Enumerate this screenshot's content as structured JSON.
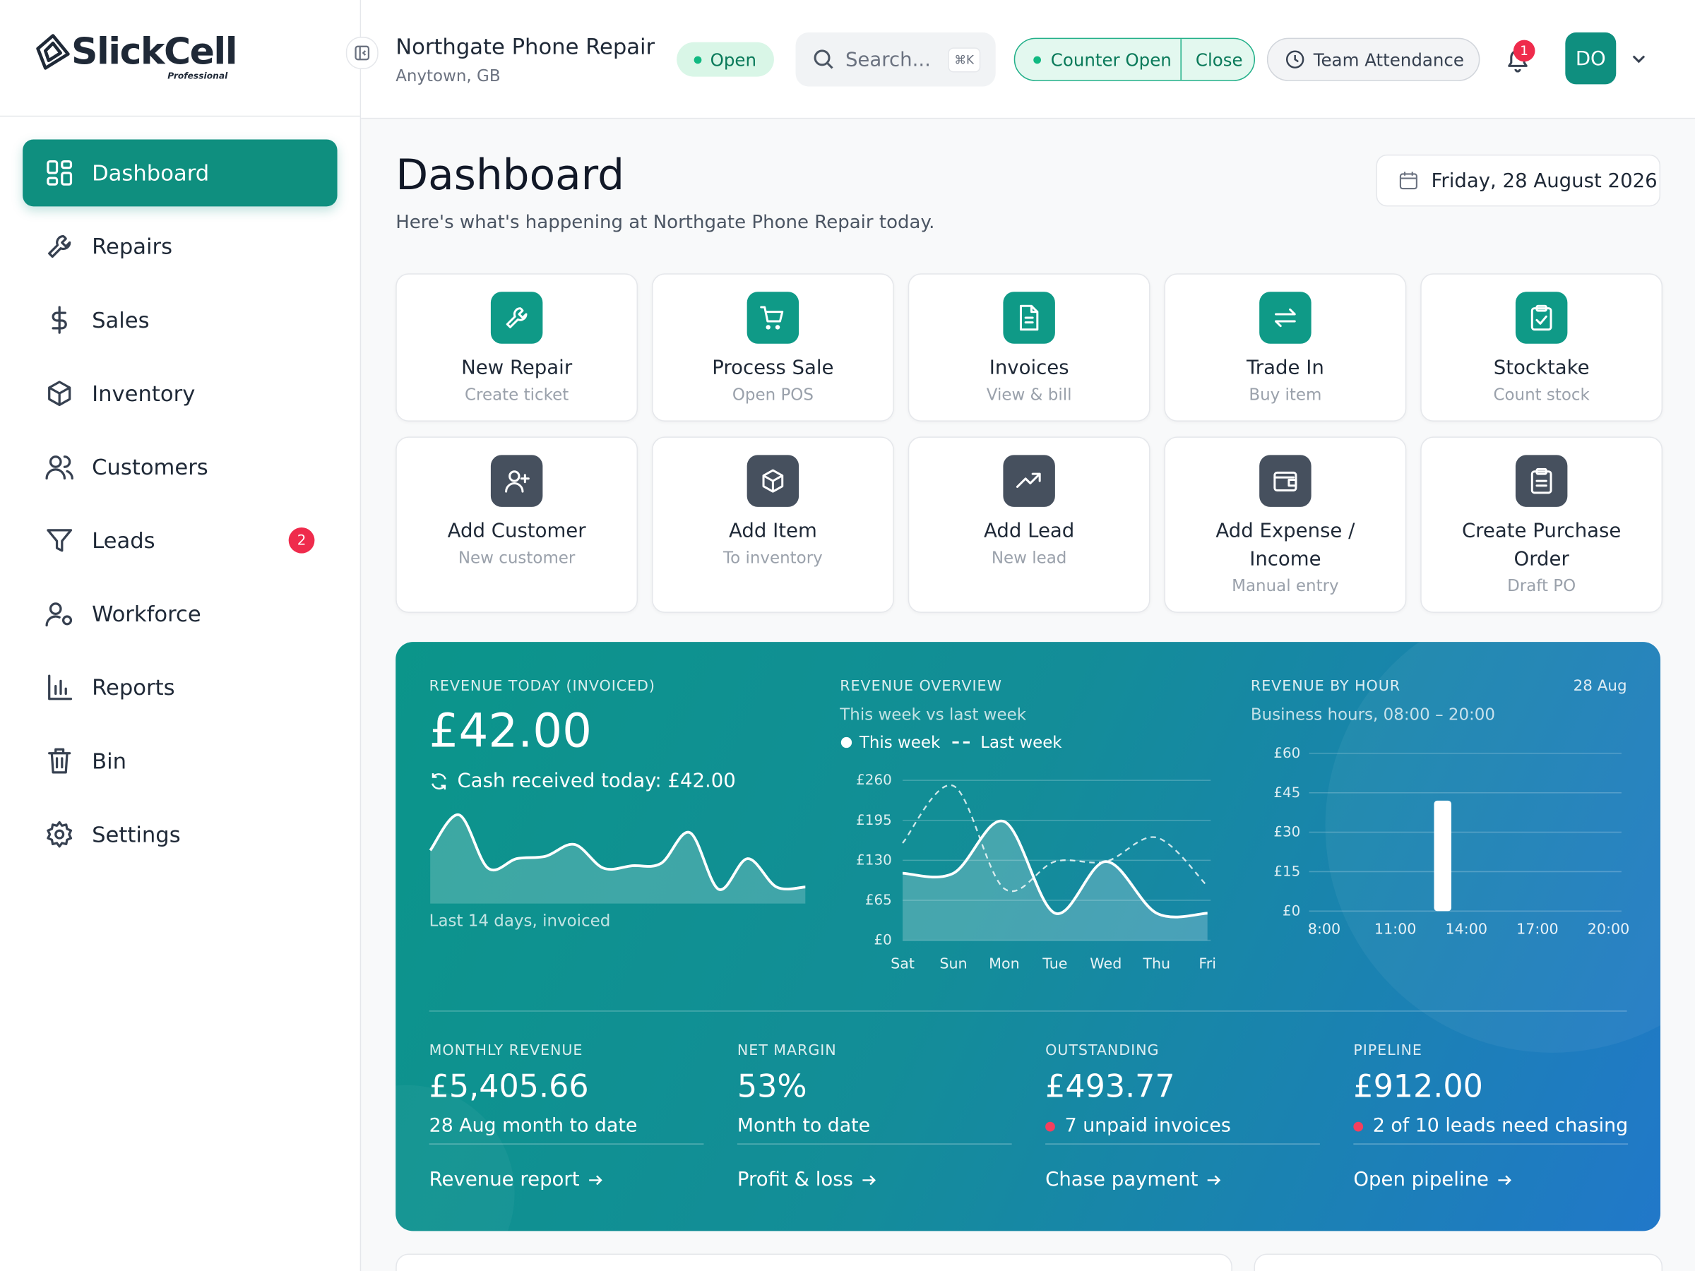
{
  "brand": {
    "name": "SlickCell",
    "tier": "Professional"
  },
  "nav": [
    {
      "label": "Dashboard"
    },
    {
      "label": "Repairs"
    },
    {
      "label": "Sales"
    },
    {
      "label": "Inventory"
    },
    {
      "label": "Customers"
    },
    {
      "label": "Leads",
      "badge": "2"
    },
    {
      "label": "Workforce"
    },
    {
      "label": "Reports"
    },
    {
      "label": "Bin"
    },
    {
      "label": "Settings"
    }
  ],
  "header": {
    "shop": "Northgate Phone Repair",
    "location": "Anytown, GB",
    "status": "Open",
    "search": "Search...",
    "shortcut": "⌘K",
    "counter": "Counter Open",
    "close": "Close",
    "attendance": "Team Attendance",
    "notifications": "1",
    "avatar": "DO"
  },
  "page": {
    "title": "Dashboard",
    "subtitle": "Here's what's happening at Northgate Phone Repair today.",
    "date": "Friday, 28 August 2026"
  },
  "actions": [
    {
      "title": "New Repair",
      "sub": "Create ticket"
    },
    {
      "title": "Process Sale",
      "sub": "Open POS"
    },
    {
      "title": "Invoices",
      "sub": "View & bill"
    },
    {
      "title": "Trade In",
      "sub": "Buy item"
    },
    {
      "title": "Stocktake",
      "sub": "Count stock"
    },
    {
      "title": "Add Customer",
      "sub": "New customer"
    },
    {
      "title": "Add Item",
      "sub": "To inventory"
    },
    {
      "title": "Add Lead",
      "sub": "New lead"
    },
    {
      "title": "Add Expense / Income",
      "sub": "Manual entry"
    },
    {
      "title": "Create Purchase Order",
      "sub": "Draft PO"
    }
  ],
  "revenue_today": {
    "label": "REVENUE TODAY (INVOICED)",
    "value": "£42.00",
    "cash": "Cash received today: £42.00"
  },
  "chart_data": [
    {
      "type": "area",
      "caption": "Last 14 days, invoiced",
      "color": "#ffffff",
      "values": [
        45,
        75,
        30,
        38,
        40,
        50,
        30,
        32,
        34,
        60,
        12,
        38,
        14,
        14
      ]
    },
    {
      "type": "line",
      "title": "REVENUE OVERVIEW",
      "subtitle": "This week vs last week",
      "categories": [
        "Sat",
        "Sun",
        "Mon",
        "Tue",
        "Wed",
        "Thu",
        "Fri"
      ],
      "series": [
        {
          "name": "This week",
          "color": "#ffffff",
          "values": [
            109,
            109,
            193,
            44,
            128,
            44,
            44
          ]
        },
        {
          "name": "Last week",
          "color": "#ffffff",
          "values": [
            158,
            251,
            84,
            128,
            128,
            167,
            88
          ]
        }
      ],
      "ylim": [
        0,
        260
      ],
      "yticks": [
        {
          "value": 0,
          "label": "£0"
        },
        {
          "value": 65,
          "label": "£65"
        },
        {
          "value": 130,
          "label": "£130"
        },
        {
          "value": 195,
          "label": "£195"
        },
        {
          "value": 260,
          "label": "£260"
        }
      ],
      "grid": true
    },
    {
      "type": "bar",
      "title": "REVENUE BY HOUR",
      "subtitle": "Business hours, 08:00 – 20:00",
      "date": "28 Aug",
      "color": "#ffffff",
      "x": [
        8,
        9,
        10,
        11,
        12,
        13,
        14,
        15,
        16,
        17,
        18,
        19
      ],
      "values": [
        0,
        0,
        0,
        0,
        0,
        42,
        0,
        0,
        0,
        0,
        0,
        0
      ],
      "xlim": [
        8,
        20
      ],
      "xticks": [
        {
          "value": 8,
          "label": "8:00"
        },
        {
          "value": 11,
          "label": "11:00"
        },
        {
          "value": 14,
          "label": "14:00"
        },
        {
          "value": 17,
          "label": "17:00"
        },
        {
          "value": 20,
          "label": "20:00"
        }
      ],
      "ylim": [
        0,
        60
      ],
      "yticks": [
        {
          "value": 0,
          "label": "£0"
        },
        {
          "value": 15,
          "label": "£15"
        },
        {
          "value": 30,
          "label": "£30"
        },
        {
          "value": 45,
          "label": "£45"
        },
        {
          "value": 60,
          "label": "£60"
        }
      ],
      "grid": true
    }
  ],
  "kpis": [
    {
      "label": "MONTHLY REVENUE",
      "value": "£5,405.66",
      "note": "28 Aug month to date",
      "link": "Revenue report"
    },
    {
      "label": "NET MARGIN",
      "value": "53%",
      "note": "Month to date",
      "link": "Profit & loss"
    },
    {
      "label": "OUTSTANDING",
      "value": "£493.77",
      "note": "7 unpaid invoices",
      "link": "Chase payment",
      "alert": true
    },
    {
      "label": "PIPELINE",
      "value": "£912.00",
      "note": "2 of 10 leads need chasing",
      "link": "Open pipeline",
      "alert": true
    }
  ]
}
